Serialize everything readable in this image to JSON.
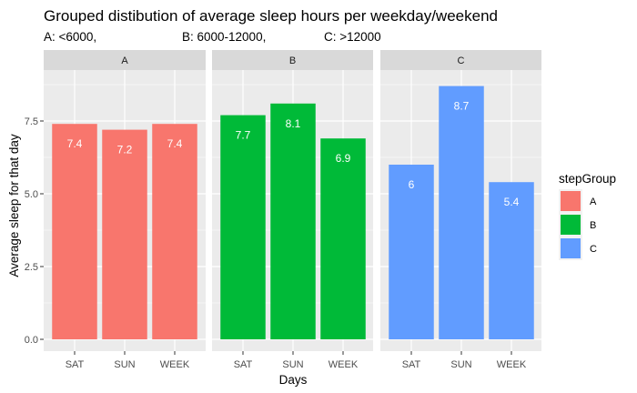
{
  "chart_data": {
    "type": "bar",
    "title": "Grouped distibution of average sleep hours per weekday/weekend",
    "subtitle": {
      "part_a": "A: <6000,",
      "part_b": "B: 6000-12000,",
      "part_c": "C: >12000"
    },
    "xlabel": "Days",
    "ylabel": "Average sleep for that day",
    "categories": [
      "SAT",
      "SUN",
      "WEEK"
    ],
    "ylim": [
      0,
      9.1
    ],
    "yticks": [
      0,
      2.5,
      5,
      7.5
    ],
    "ytick_labels": [
      "0.0",
      "2.5",
      "5.0",
      "7.5"
    ],
    "facets": [
      {
        "name": "A",
        "color": "#F8766D",
        "values": [
          7.4,
          7.2,
          7.4
        ],
        "labels": [
          "7.4",
          "7.2",
          "7.4"
        ]
      },
      {
        "name": "B",
        "color": "#00BA38",
        "values": [
          7.7,
          8.1,
          6.9
        ],
        "labels": [
          "7.7",
          "8.1",
          "6.9"
        ]
      },
      {
        "name": "C",
        "color": "#619CFF",
        "values": [
          6.0,
          8.7,
          5.4
        ],
        "labels": [
          "6",
          "8.7",
          "5.4"
        ]
      }
    ],
    "legend": {
      "title": "stepGroup",
      "position": "right",
      "items": [
        {
          "label": "A",
          "color": "#F8766D"
        },
        {
          "label": "B",
          "color": "#00BA38"
        },
        {
          "label": "C",
          "color": "#619CFF"
        }
      ]
    },
    "grid": true,
    "panel_background": "#EBEBEB",
    "strip_background": "#D9D9D9"
  }
}
